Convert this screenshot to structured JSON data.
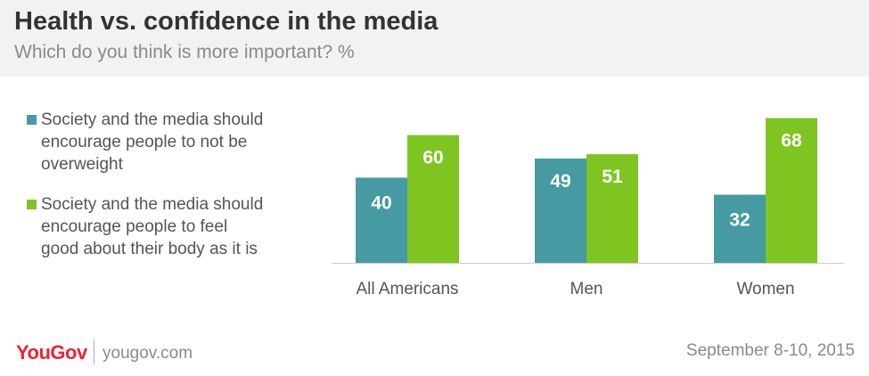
{
  "title": "Health vs. confidence in the media",
  "subtitle": "Which do you think is more important? %",
  "footer": {
    "logo": "YouGov",
    "site": "yougov.com",
    "date": "September 8-10, 2015"
  },
  "colors": {
    "teal": "#459ba1",
    "green": "#7ec521",
    "baseline": "#cccccc"
  },
  "chart_data": {
    "type": "bar",
    "categories": [
      "All Americans",
      "Men",
      "Women"
    ],
    "series": [
      {
        "name": "Society and the media should encourage people to not be overweight",
        "legend_lines": [
          "Society and the media should",
          "encourage people to not be",
          "overweight"
        ],
        "values": [
          40,
          49,
          32
        ],
        "color": "#459ba1"
      },
      {
        "name": "Society and the media should encourage people to feel good about their body as it is",
        "legend_lines": [
          "Society and the media should",
          "encourage people to feel",
          "good about their body as it is"
        ],
        "values": [
          60,
          51,
          68
        ],
        "color": "#7ec521"
      }
    ],
    "ylim": [
      0,
      70
    ],
    "legend_position": "left",
    "grid": false
  }
}
